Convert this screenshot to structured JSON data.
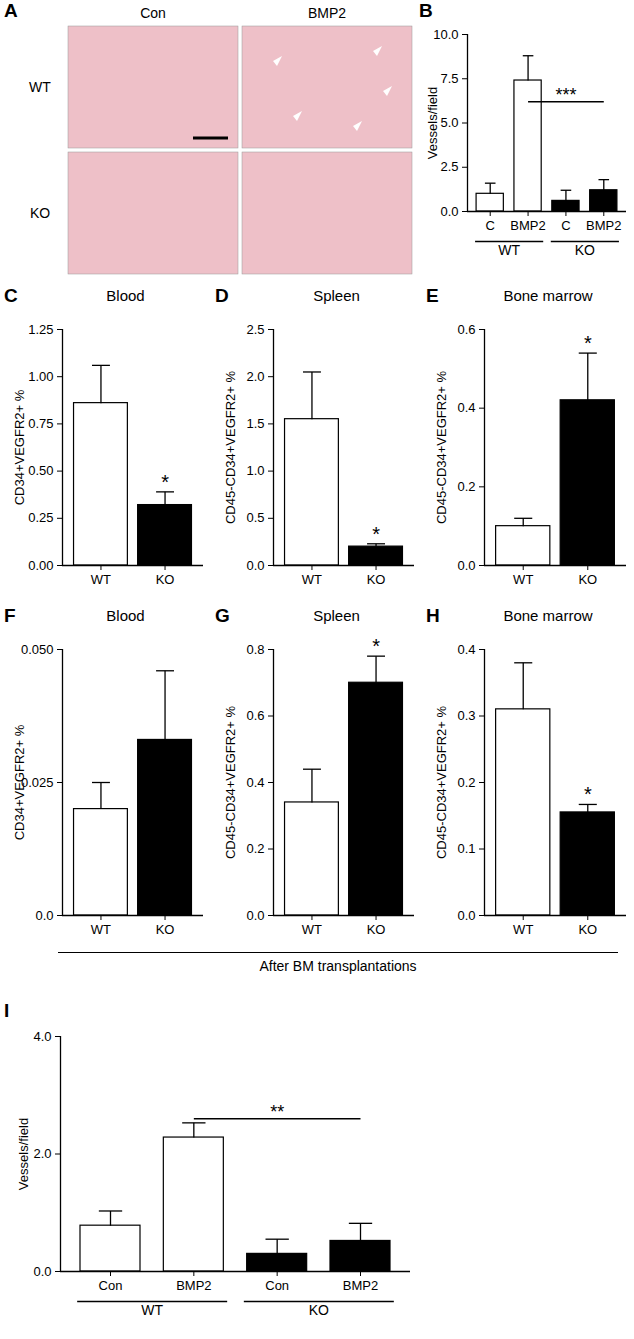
{
  "chart_data": [
    {
      "type": "image_grid",
      "panel": "A",
      "columns": [
        "Con",
        "BMP2"
      ],
      "rows": [
        "WT",
        "KO"
      ],
      "color": "#eec0c8"
    },
    {
      "type": "bar",
      "panel": "B",
      "y_label": "Vessels/field",
      "categories": [
        "C",
        "BMP2",
        "C",
        "BMP2"
      ],
      "groups": [
        "WT",
        "KO"
      ],
      "values": [
        1.0,
        7.4,
        0.6,
        1.2
      ],
      "errors": [
        0.6,
        1.4,
        0.6,
        0.6
      ],
      "colors": [
        "#ffffff",
        "#ffffff",
        "#000000",
        "#000000"
      ],
      "ylim": [
        0,
        10
      ],
      "yticks": [
        {
          "value": 0,
          "label": "0.0"
        },
        2.5,
        {
          "value": 5,
          "label": "5.0"
        },
        7.5,
        {
          "value": 10,
          "label": "10.0"
        }
      ],
      "annotations": [
        {
          "text": "***",
          "from": 1,
          "to": 3,
          "y": 6.2
        }
      ]
    },
    {
      "type": "bar",
      "panel": "C",
      "title": "Blood",
      "y_label": "CD34+VEGFR2+ %",
      "categories": [
        "WT",
        "KO"
      ],
      "values": [
        0.86,
        0.32
      ],
      "errors": [
        0.2,
        0.07
      ],
      "colors": [
        "#ffffff",
        "#000000"
      ],
      "ylim": [
        0,
        1.25
      ],
      "yticks": [
        {
          "value": 0,
          "label": "0.00"
        },
        0.25,
        {
          "value": 0.5,
          "label": "0.50"
        },
        0.75,
        {
          "value": 1,
          "label": "1.00"
        },
        1.25
      ],
      "annotations": [
        {
          "text": "*",
          "at": 1
        }
      ]
    },
    {
      "type": "bar",
      "panel": "D",
      "title": "Spleen",
      "y_label": "CD45-CD34+VEGFR2+ %",
      "categories": [
        "WT",
        "KO"
      ],
      "values": [
        1.55,
        0.2
      ],
      "errors": [
        0.5,
        0.03
      ],
      "colors": [
        "#ffffff",
        "#000000"
      ],
      "ylim": [
        0,
        2.5
      ],
      "yticks": [
        {
          "value": 0,
          "label": "0.0"
        },
        0.5,
        {
          "value": 1,
          "label": "1.0"
        },
        1.5,
        {
          "value": 2,
          "label": "2.0"
        },
        2.5
      ],
      "annotations": [
        {
          "text": "*",
          "at": 1
        }
      ]
    },
    {
      "type": "bar",
      "panel": "E",
      "title": "Bone marrow",
      "y_label": "CD45-CD34+VEGFR2+ %",
      "categories": [
        "WT",
        "KO"
      ],
      "values": [
        0.1,
        0.42
      ],
      "errors": [
        0.02,
        0.12
      ],
      "colors": [
        "#ffffff",
        "#000000"
      ],
      "ylim": [
        0,
        0.6
      ],
      "yticks": [
        {
          "value": 0,
          "label": "0.0"
        },
        0.2,
        0.4,
        0.6
      ],
      "annotations": [
        {
          "text": "*",
          "at": 1
        }
      ]
    },
    {
      "type": "bar",
      "panel": "F",
      "title": "Blood",
      "y_label": "CD34+VEGFR2+ %",
      "categories": [
        "WT",
        "KO"
      ],
      "values": [
        0.02,
        0.033
      ],
      "errors": [
        0.005,
        0.013
      ],
      "colors": [
        "#ffffff",
        "#000000"
      ],
      "ylim": [
        0,
        0.05
      ],
      "yticks": [
        {
          "value": 0,
          "label": "0.0"
        },
        {
          "value": 0.025,
          "label": "0.025"
        },
        {
          "value": 0.05,
          "label": "0.050"
        }
      ],
      "annotations": []
    },
    {
      "type": "bar",
      "panel": "G",
      "title": "Spleen",
      "y_label": "CD45-CD34+VEGFR2+ %",
      "categories": [
        "WT",
        "KO"
      ],
      "values": [
        0.34,
        0.7
      ],
      "errors": [
        0.1,
        0.08
      ],
      "colors": [
        "#ffffff",
        "#000000"
      ],
      "ylim": [
        0,
        0.8
      ],
      "yticks": [
        {
          "value": 0,
          "label": "0.0"
        },
        0.2,
        0.4,
        0.6,
        0.8
      ],
      "annotations": [
        {
          "text": "*",
          "at": 1
        }
      ]
    },
    {
      "type": "bar",
      "panel": "H",
      "title": "Bone marrow",
      "y_label": "CD45-CD34+VEGFR2+ %",
      "categories": [
        "WT",
        "KO"
      ],
      "values": [
        0.31,
        0.155
      ],
      "errors": [
        0.07,
        0.012
      ],
      "colors": [
        "#ffffff",
        "#000000"
      ],
      "ylim": [
        0,
        0.4
      ],
      "yticks": [
        {
          "value": 0,
          "label": "0.0"
        },
        0.1,
        0.2,
        0.3,
        0.4
      ],
      "annotations": [
        {
          "text": "*",
          "at": 1
        }
      ]
    },
    {
      "type": "bar",
      "panel": "I",
      "y_label": "Vessels/field",
      "categories": [
        "Con",
        "BMP2",
        "Con",
        "BMP2"
      ],
      "groups": [
        "WT",
        "KO"
      ],
      "values": [
        0.78,
        2.28,
        0.3,
        0.52
      ],
      "errors": [
        0.25,
        0.25,
        0.25,
        0.3
      ],
      "colors": [
        "#ffffff",
        "#ffffff",
        "#000000",
        "#000000"
      ],
      "ylim": [
        0,
        4
      ],
      "yticks": [
        {
          "value": 0,
          "label": "0.0"
        },
        {
          "value": 2,
          "label": "2.0"
        },
        {
          "value": 4,
          "label": "4.0"
        }
      ],
      "annotations": [
        {
          "text": "**",
          "from": 1,
          "to": 3,
          "y": 2.6
        }
      ]
    }
  ],
  "caption": "After BM transplantations"
}
